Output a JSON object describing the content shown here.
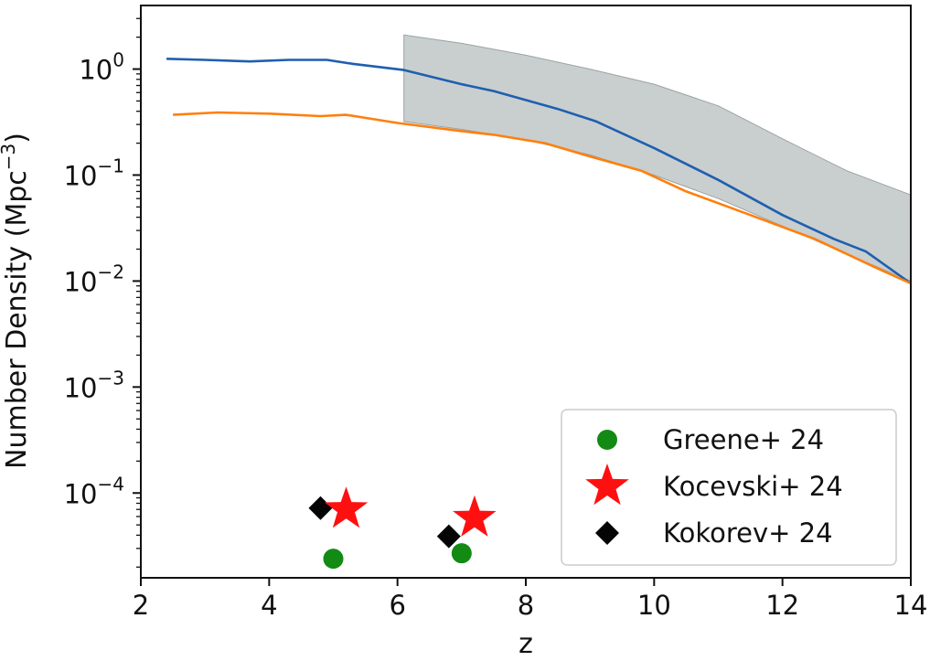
{
  "chart_data": {
    "type": "line",
    "xlabel": "z",
    "ylabel_main": "Number Density (Mpc",
    "ylabel_sup": "−3",
    "ylabel_close": ")",
    "yscale": "log",
    "xlim": [
      2,
      14
    ],
    "ylim_log10": [
      -4.8,
      0.6
    ],
    "x_ticks": [
      2,
      4,
      6,
      8,
      10,
      12,
      14
    ],
    "y_ticks": [
      {
        "exp": 0,
        "label_base": "10",
        "label_exp": "0"
      },
      {
        "exp": -1,
        "label_base": "10",
        "label_exp": "−1"
      },
      {
        "exp": -2,
        "label_base": "10",
        "label_exp": "−2"
      },
      {
        "exp": -3,
        "label_base": "10",
        "label_exp": "−3"
      },
      {
        "exp": -4,
        "label_base": "10",
        "label_exp": "−4"
      }
    ],
    "grid": false,
    "band": {
      "color": "#c9cfcf",
      "edge": "#9aa3a3",
      "x": [
        6.1,
        7.0,
        8.0,
        9.0,
        10.0,
        11.0,
        12.0,
        13.0,
        14.0
      ],
      "upper": [
        2.1,
        1.75,
        1.35,
        1.0,
        0.72,
        0.45,
        0.22,
        0.11,
        0.065
      ],
      "lower": [
        0.32,
        0.27,
        0.215,
        0.155,
        0.1,
        0.06,
        0.033,
        0.018,
        0.01
      ]
    },
    "lines": [
      {
        "color": "#1f5fb0",
        "x": [
          2.4,
          3.0,
          3.7,
          4.3,
          4.9,
          5.3,
          6.1,
          7.0,
          7.5,
          8.5,
          9.1,
          10.0,
          11.0,
          12.0,
          12.8,
          13.3,
          14.0
        ],
        "y": [
          1.25,
          1.22,
          1.18,
          1.22,
          1.22,
          1.12,
          0.98,
          0.72,
          0.62,
          0.42,
          0.32,
          0.18,
          0.09,
          0.042,
          0.025,
          0.019,
          0.0095
        ]
      },
      {
        "color": "#ff7f0e",
        "x": [
          2.5,
          3.2,
          4.0,
          4.8,
          5.2,
          6.0,
          7.0,
          7.5,
          8.3,
          9.0,
          9.8,
          10.5,
          11.5,
          12.5,
          13.5,
          14.0
        ],
        "y": [
          0.37,
          0.39,
          0.38,
          0.36,
          0.37,
          0.31,
          0.26,
          0.24,
          0.2,
          0.15,
          0.11,
          0.07,
          0.042,
          0.025,
          0.013,
          0.0095
        ]
      }
    ],
    "series": [
      {
        "name": "Greene+ 24",
        "marker": "circle",
        "color": "#138a13",
        "points": [
          {
            "x": 5.0,
            "y": 2.4e-05
          },
          {
            "x": 7.0,
            "y": 2.7e-05
          }
        ]
      },
      {
        "name": "Kocevski+ 24",
        "marker": "star",
        "color": "#ff1010",
        "points": [
          {
            "x": 5.2,
            "y": 7e-05
          },
          {
            "x": 7.2,
            "y": 5.8e-05
          }
        ]
      },
      {
        "name": "Kokorev+ 24",
        "marker": "diamond",
        "color": "#050505",
        "points": [
          {
            "x": 4.8,
            "y": 7.2e-05
          },
          {
            "x": 6.8,
            "y": 3.9e-05
          }
        ]
      }
    ],
    "legend_position": "lower-right"
  }
}
